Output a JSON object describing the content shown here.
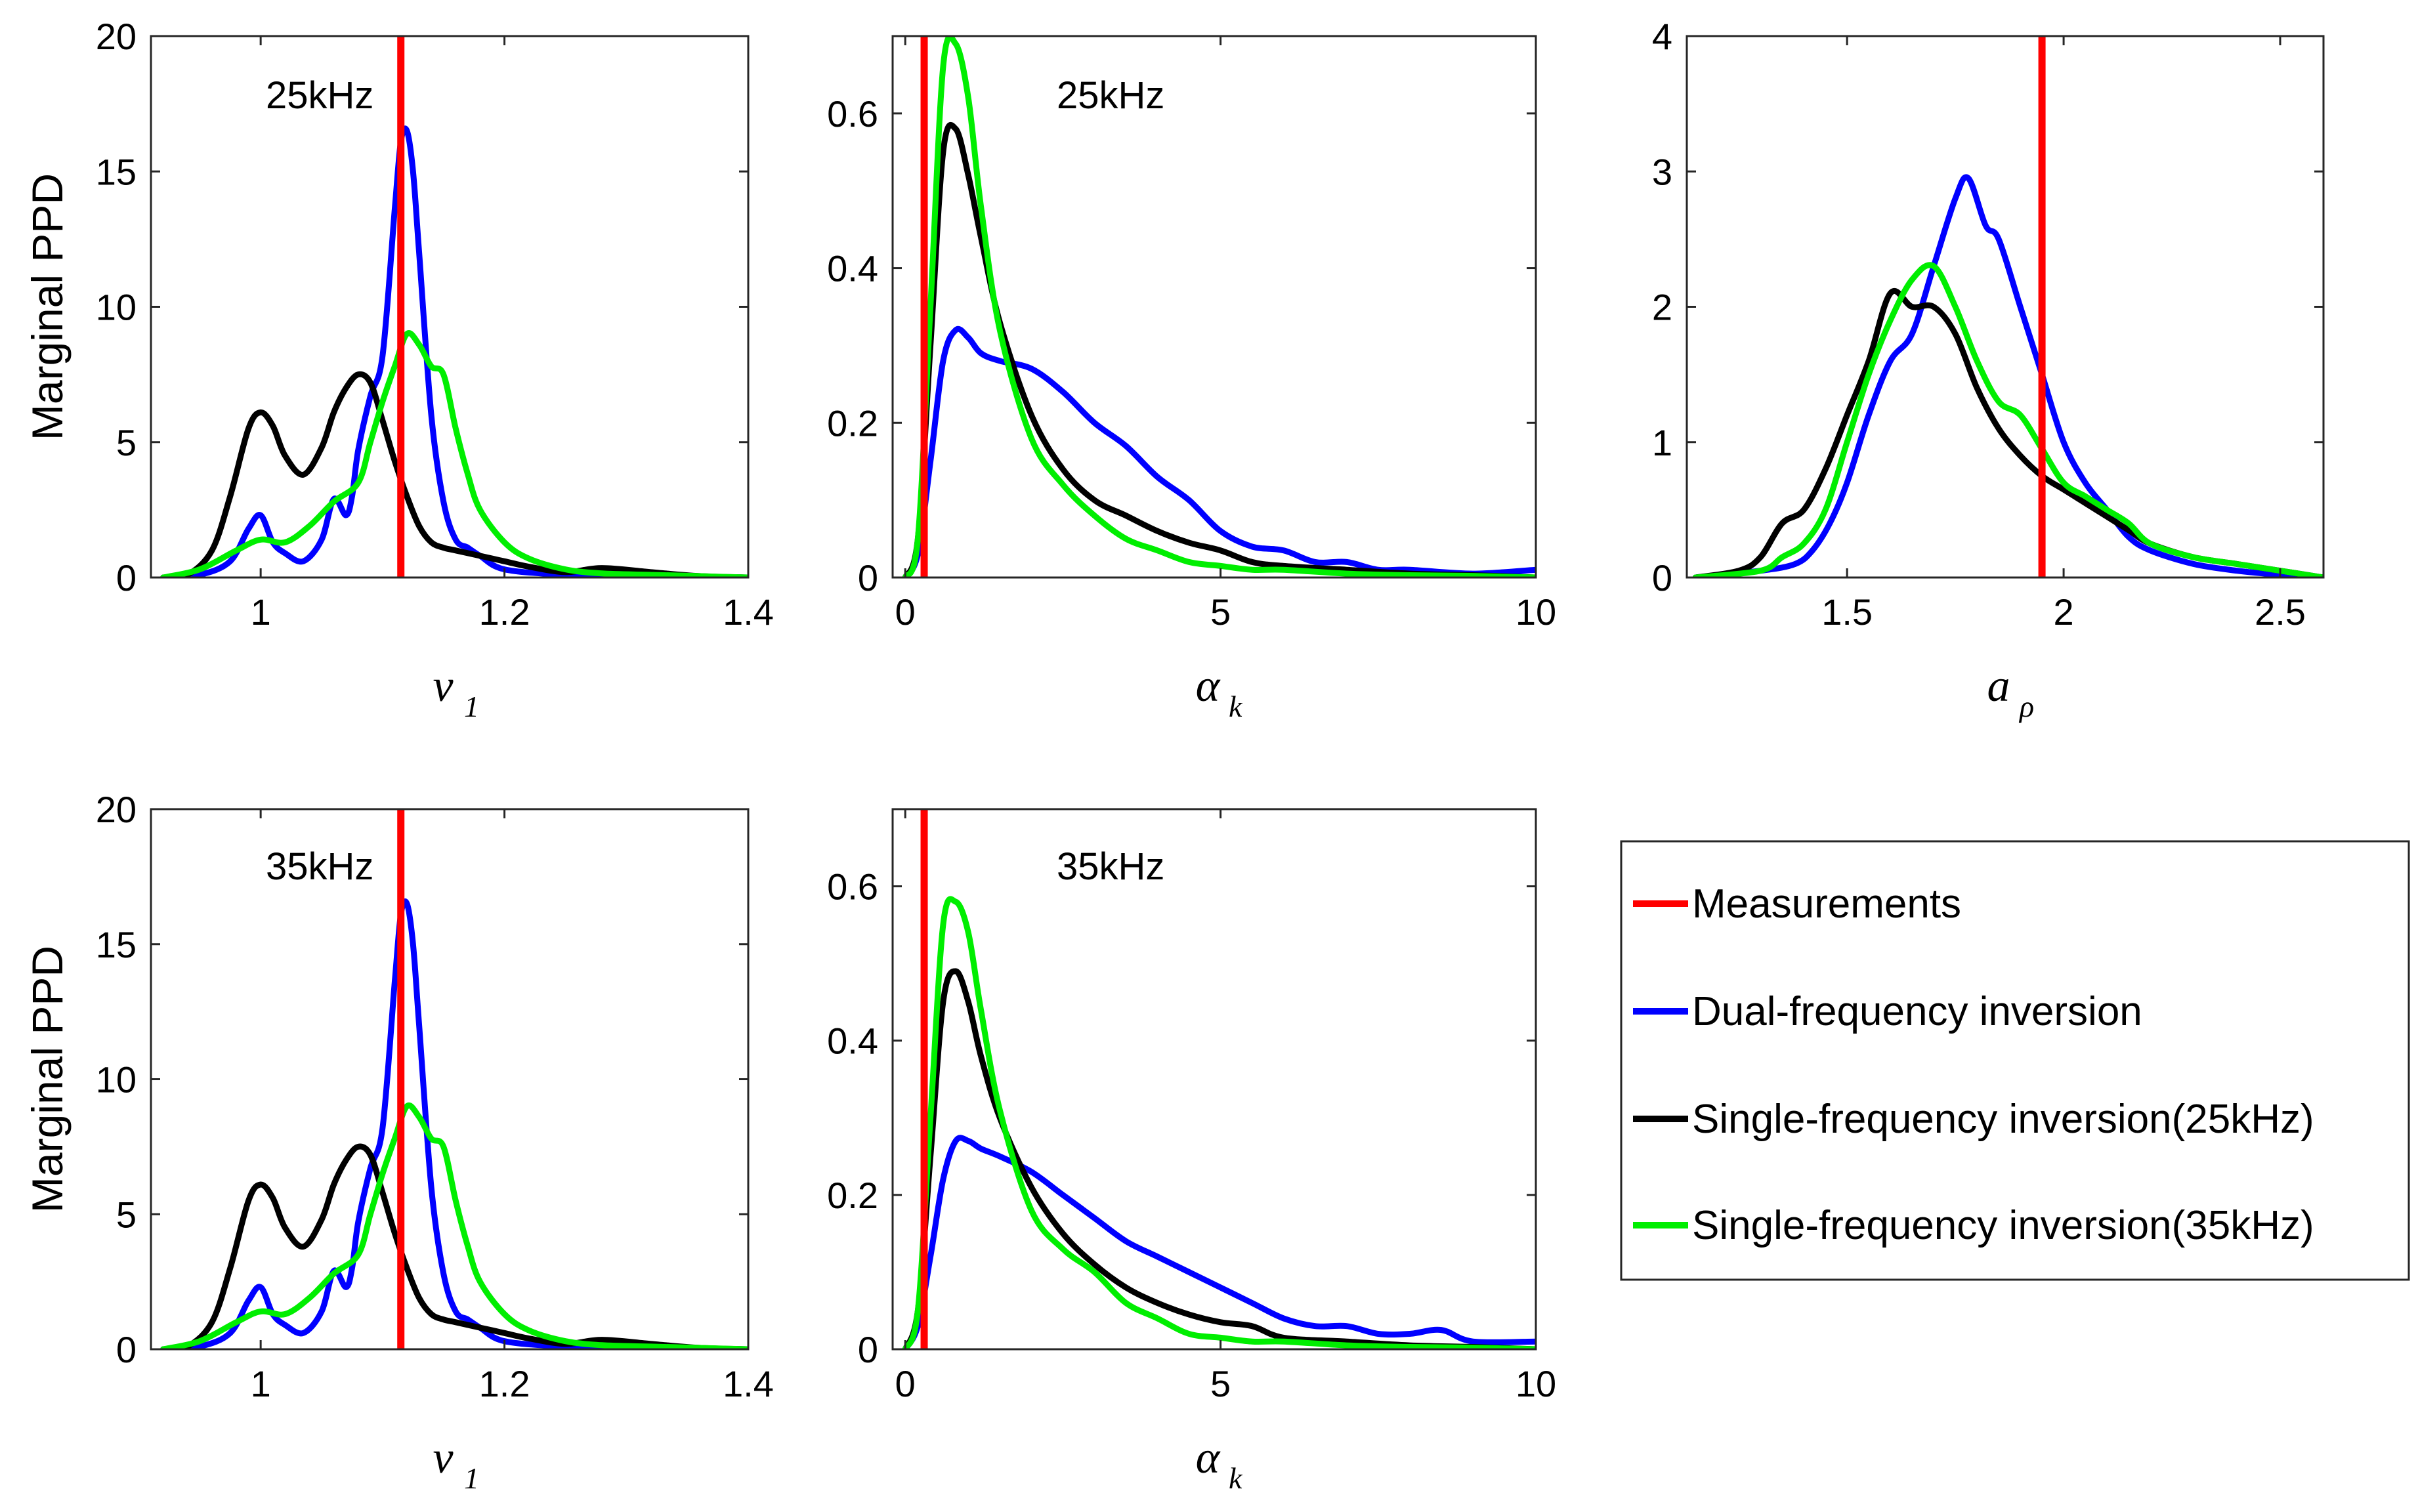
{
  "colors": {
    "measurement": "#ff0000",
    "dual": "#0000ff",
    "single25": "#000000",
    "single35": "#00ee00"
  },
  "legend": {
    "entries": [
      {
        "key": "measurement",
        "label": "Measurements"
      },
      {
        "key": "dual",
        "label": "Dual-frequency inversion"
      },
      {
        "key": "single25",
        "label": "Single-frequency inversion(25kHz)"
      },
      {
        "key": "single35",
        "label": "Single-frequency inversion(35kHz)"
      }
    ]
  },
  "chart_data": [
    {
      "id": "top-left",
      "type": "line",
      "annotation": "25kHz",
      "ylabel": "Marginal PPD",
      "xlabel_main": "v",
      "xlabel_sub": "1",
      "xlim": [
        0.91,
        1.4
      ],
      "ylim": [
        0,
        20
      ],
      "xticks": [
        1,
        1.2,
        1.4
      ],
      "xtick_labels": [
        "1",
        "1.2",
        "1.4"
      ],
      "yticks": [
        0,
        5,
        10,
        15,
        20
      ],
      "ytick_labels": [
        "0",
        "5",
        "10",
        "15",
        "20"
      ],
      "measurement_x": 1.115,
      "series": [
        {
          "name": "Dual-frequency inversion",
          "key": "dual",
          "x": [
            0.92,
            0.95,
            0.975,
            0.99,
            1.0,
            1.01,
            1.02,
            1.035,
            1.05,
            1.06,
            1.07,
            1.075,
            1.08,
            1.09,
            1.1,
            1.11,
            1.115,
            1.12,
            1.125,
            1.13,
            1.14,
            1.15,
            1.16,
            1.17,
            1.18,
            1.2,
            1.25,
            1.3,
            1.4
          ],
          "y": [
            0,
            0.1,
            0.6,
            1.8,
            2.3,
            1.3,
            0.9,
            0.6,
            1.4,
            2.9,
            2.3,
            3.0,
            4.7,
            6.7,
            8.2,
            13.6,
            16.1,
            16.5,
            15.0,
            12.0,
            6.0,
            2.8,
            1.4,
            1.1,
            0.8,
            0.3,
            0.1,
            0.05,
            0
          ]
        },
        {
          "name": "Single-frequency inversion(25kHz)",
          "key": "single25",
          "x": [
            0.92,
            0.94,
            0.96,
            0.975,
            0.99,
            1.0,
            1.01,
            1.02,
            1.035,
            1.05,
            1.06,
            1.07,
            1.08,
            1.09,
            1.1,
            1.11,
            1.12,
            1.13,
            1.14,
            1.15,
            1.16,
            1.18,
            1.2,
            1.22,
            1.25,
            1.28,
            1.32,
            1.36,
            1.4
          ],
          "y": [
            0,
            0.1,
            1.0,
            3.0,
            5.5,
            6.1,
            5.6,
            4.5,
            3.8,
            4.8,
            6.1,
            7.0,
            7.5,
            7.2,
            5.8,
            4.3,
            3.0,
            1.9,
            1.3,
            1.1,
            1.0,
            0.8,
            0.6,
            0.4,
            0.2,
            0.35,
            0.2,
            0.05,
            0
          ]
        },
        {
          "name": "Single-frequency inversion(35kHz)",
          "key": "single35",
          "x": [
            0.92,
            0.95,
            0.98,
            1.0,
            1.02,
            1.04,
            1.06,
            1.08,
            1.09,
            1.1,
            1.11,
            1.12,
            1.13,
            1.14,
            1.15,
            1.16,
            1.17,
            1.18,
            1.2,
            1.22,
            1.25,
            1.28,
            1.32,
            1.36,
            1.4
          ],
          "y": [
            0,
            0.3,
            1.0,
            1.4,
            1.3,
            1.9,
            2.8,
            3.5,
            5.0,
            6.5,
            7.8,
            9.0,
            8.6,
            7.8,
            7.5,
            5.5,
            3.8,
            2.5,
            1.3,
            0.7,
            0.3,
            0.15,
            0.1,
            0.05,
            0
          ]
        }
      ]
    },
    {
      "id": "top-middle",
      "type": "line",
      "annotation": "25kHz",
      "ylabel": "",
      "xlabel_main": "α",
      "xlabel_sub": "k",
      "xlim": [
        -0.2,
        10
      ],
      "ylim": [
        0,
        0.7
      ],
      "xticks": [
        0,
        5,
        10
      ],
      "xtick_labels": [
        "0",
        "5",
        "10"
      ],
      "yticks": [
        0,
        0.2,
        0.4,
        0.6
      ],
      "ytick_labels": [
        "0",
        "0.2",
        "0.4",
        "0.6"
      ],
      "measurement_x": 0.3,
      "series": [
        {
          "name": "Dual-frequency inversion",
          "key": "dual",
          "x": [
            0,
            0.2,
            0.4,
            0.6,
            0.8,
            1.0,
            1.2,
            1.5,
            2.0,
            2.5,
            3.0,
            3.5,
            4.0,
            4.5,
            5.0,
            5.5,
            6.0,
            6.5,
            7.0,
            7.5,
            8.0,
            9.0,
            10.0
          ],
          "y": [
            0,
            0.03,
            0.15,
            0.28,
            0.32,
            0.31,
            0.29,
            0.28,
            0.27,
            0.24,
            0.2,
            0.17,
            0.13,
            0.1,
            0.06,
            0.04,
            0.035,
            0.02,
            0.02,
            0.01,
            0.01,
            0.005,
            0.01
          ]
        },
        {
          "name": "Single-frequency inversion(25kHz)",
          "key": "single25",
          "x": [
            0,
            0.2,
            0.4,
            0.6,
            0.8,
            1.0,
            1.2,
            1.5,
            2.0,
            2.5,
            3.0,
            3.5,
            4.0,
            4.5,
            5.0,
            5.5,
            6.0,
            7.0,
            8.0,
            9.0,
            10.0
          ],
          "y": [
            0,
            0.05,
            0.3,
            0.55,
            0.58,
            0.52,
            0.44,
            0.33,
            0.21,
            0.14,
            0.1,
            0.08,
            0.06,
            0.045,
            0.035,
            0.02,
            0.015,
            0.01,
            0.005,
            0.003,
            0
          ]
        },
        {
          "name": "Single-frequency inversion(35kHz)",
          "key": "single35",
          "x": [
            0,
            0.2,
            0.4,
            0.6,
            0.8,
            1.0,
            1.2,
            1.5,
            2.0,
            2.5,
            3.0,
            3.5,
            4.0,
            4.5,
            5.0,
            5.5,
            6.0,
            7.0,
            8.0,
            9.0,
            10.0
          ],
          "y": [
            0,
            0.05,
            0.35,
            0.66,
            0.69,
            0.62,
            0.48,
            0.32,
            0.18,
            0.12,
            0.08,
            0.05,
            0.035,
            0.02,
            0.015,
            0.01,
            0.01,
            0.005,
            0.003,
            0.002,
            0
          ]
        }
      ]
    },
    {
      "id": "top-right",
      "type": "line",
      "annotation": "",
      "ylabel": "",
      "xlabel_main": "a",
      "xlabel_sub": "ρ",
      "xlim": [
        1.13,
        2.6
      ],
      "ylim": [
        0,
        4
      ],
      "xticks": [
        1.5,
        2,
        2.5
      ],
      "xtick_labels": [
        "1.5",
        "2",
        "2.5"
      ],
      "yticks": [
        0,
        1,
        2,
        3,
        4
      ],
      "ytick_labels": [
        "0",
        "1",
        "2",
        "3",
        "4"
      ],
      "measurement_x": 1.95,
      "series": [
        {
          "name": "Dual-frequency inversion",
          "key": "dual",
          "x": [
            1.15,
            1.3,
            1.38,
            1.42,
            1.46,
            1.5,
            1.55,
            1.6,
            1.65,
            1.7,
            1.75,
            1.78,
            1.82,
            1.85,
            1.9,
            1.95,
            2.0,
            2.05,
            2.1,
            2.15,
            2.2,
            2.3,
            2.4,
            2.5,
            2.6
          ],
          "y": [
            0,
            0.05,
            0.1,
            0.2,
            0.4,
            0.7,
            1.2,
            1.6,
            1.8,
            2.3,
            2.8,
            2.95,
            2.6,
            2.5,
            2.0,
            1.5,
            1.0,
            0.7,
            0.5,
            0.3,
            0.2,
            0.1,
            0.05,
            0.02,
            0
          ]
        },
        {
          "name": "Single-frequency inversion(25kHz)",
          "key": "single25",
          "x": [
            1.15,
            1.25,
            1.3,
            1.35,
            1.4,
            1.45,
            1.5,
            1.55,
            1.6,
            1.65,
            1.7,
            1.75,
            1.8,
            1.85,
            1.9,
            1.95,
            2.0,
            2.05,
            2.1,
            2.15,
            2.2,
            2.3,
            2.4,
            2.5,
            2.6
          ],
          "y": [
            0,
            0.05,
            0.15,
            0.4,
            0.5,
            0.8,
            1.2,
            1.6,
            2.1,
            2.0,
            2.0,
            1.8,
            1.4,
            1.1,
            0.9,
            0.75,
            0.65,
            0.55,
            0.45,
            0.35,
            0.25,
            0.15,
            0.1,
            0.05,
            0
          ]
        },
        {
          "name": "Single-frequency inversion(35kHz)",
          "key": "single35",
          "x": [
            1.15,
            1.3,
            1.35,
            1.4,
            1.45,
            1.5,
            1.55,
            1.6,
            1.65,
            1.7,
            1.75,
            1.8,
            1.85,
            1.9,
            1.95,
            2.0,
            2.05,
            2.1,
            2.15,
            2.2,
            2.3,
            2.4,
            2.5,
            2.6
          ],
          "y": [
            0,
            0.05,
            0.15,
            0.25,
            0.5,
            1.0,
            1.5,
            1.9,
            2.2,
            2.3,
            2.0,
            1.6,
            1.3,
            1.2,
            0.95,
            0.7,
            0.6,
            0.5,
            0.4,
            0.25,
            0.15,
            0.1,
            0.05,
            0
          ]
        }
      ]
    },
    {
      "id": "bottom-left",
      "type": "line",
      "annotation": "35kHz",
      "ylabel": "Marginal PPD",
      "xlabel_main": "v",
      "xlabel_sub": "1",
      "xlim": [
        0.91,
        1.4
      ],
      "ylim": [
        0,
        20
      ],
      "xticks": [
        1,
        1.2,
        1.4
      ],
      "xtick_labels": [
        "1",
        "1.2",
        "1.4"
      ],
      "yticks": [
        0,
        5,
        10,
        15,
        20
      ],
      "ytick_labels": [
        "0",
        "5",
        "10",
        "15",
        "20"
      ],
      "measurement_x": 1.115,
      "series": [
        {
          "name": "Dual-frequency inversion",
          "key": "dual",
          "x": [
            0.92,
            0.95,
            0.975,
            0.99,
            1.0,
            1.01,
            1.02,
            1.035,
            1.05,
            1.06,
            1.07,
            1.075,
            1.08,
            1.09,
            1.1,
            1.11,
            1.115,
            1.12,
            1.125,
            1.13,
            1.14,
            1.15,
            1.16,
            1.17,
            1.18,
            1.2,
            1.25,
            1.3,
            1.4
          ],
          "y": [
            0,
            0.1,
            0.6,
            1.8,
            2.3,
            1.3,
            0.9,
            0.6,
            1.4,
            2.9,
            2.3,
            3.0,
            4.7,
            6.7,
            8.2,
            13.6,
            16.1,
            16.5,
            15.0,
            12.0,
            6.0,
            2.8,
            1.4,
            1.1,
            0.8,
            0.3,
            0.1,
            0.05,
            0
          ]
        },
        {
          "name": "Single-frequency inversion(25kHz)",
          "key": "single25",
          "x": [
            0.92,
            0.94,
            0.96,
            0.975,
            0.99,
            1.0,
            1.01,
            1.02,
            1.035,
            1.05,
            1.06,
            1.07,
            1.08,
            1.09,
            1.1,
            1.11,
            1.12,
            1.13,
            1.14,
            1.15,
            1.16,
            1.18,
            1.2,
            1.22,
            1.25,
            1.28,
            1.32,
            1.36,
            1.4
          ],
          "y": [
            0,
            0.1,
            1.0,
            3.0,
            5.5,
            6.1,
            5.6,
            4.5,
            3.8,
            4.8,
            6.1,
            7.0,
            7.5,
            7.2,
            5.8,
            4.3,
            3.0,
            1.9,
            1.3,
            1.1,
            1.0,
            0.8,
            0.6,
            0.4,
            0.2,
            0.35,
            0.2,
            0.05,
            0
          ]
        },
        {
          "name": "Single-frequency inversion(35kHz)",
          "key": "single35",
          "x": [
            0.92,
            0.95,
            0.98,
            1.0,
            1.02,
            1.04,
            1.06,
            1.08,
            1.09,
            1.1,
            1.11,
            1.12,
            1.13,
            1.14,
            1.15,
            1.16,
            1.17,
            1.18,
            1.2,
            1.22,
            1.25,
            1.28,
            1.32,
            1.36,
            1.4
          ],
          "y": [
            0,
            0.3,
            1.0,
            1.4,
            1.3,
            1.9,
            2.8,
            3.5,
            5.0,
            6.5,
            7.8,
            9.0,
            8.6,
            7.8,
            7.5,
            5.5,
            3.8,
            2.5,
            1.3,
            0.7,
            0.3,
            0.15,
            0.1,
            0.05,
            0
          ]
        }
      ]
    },
    {
      "id": "bottom-middle",
      "type": "line",
      "annotation": "35kHz",
      "ylabel": "",
      "xlabel_main": "α",
      "xlabel_sub": "k",
      "xlim": [
        -0.2,
        10
      ],
      "ylim": [
        0,
        0.7
      ],
      "xticks": [
        0,
        5,
        10
      ],
      "xtick_labels": [
        "0",
        "5",
        "10"
      ],
      "yticks": [
        0,
        0.2,
        0.4,
        0.6
      ],
      "ytick_labels": [
        "0",
        "0.2",
        "0.4",
        "0.6"
      ],
      "measurement_x": 0.3,
      "series": [
        {
          "name": "Dual-frequency inversion",
          "key": "dual",
          "x": [
            0,
            0.2,
            0.4,
            0.6,
            0.8,
            1.0,
            1.2,
            1.5,
            2.0,
            2.5,
            3.0,
            3.5,
            4.0,
            4.5,
            5.0,
            5.5,
            6.0,
            6.5,
            7.0,
            7.5,
            8.0,
            8.5,
            9.0,
            10.0
          ],
          "y": [
            0,
            0.03,
            0.12,
            0.22,
            0.27,
            0.27,
            0.26,
            0.25,
            0.23,
            0.2,
            0.17,
            0.14,
            0.12,
            0.1,
            0.08,
            0.06,
            0.04,
            0.03,
            0.03,
            0.02,
            0.02,
            0.025,
            0.01,
            0.01
          ]
        },
        {
          "name": "Single-frequency inversion(25kHz)",
          "key": "single25",
          "x": [
            0,
            0.2,
            0.4,
            0.6,
            0.8,
            1.0,
            1.2,
            1.5,
            2.0,
            2.5,
            3.0,
            3.5,
            4.0,
            4.5,
            5.0,
            5.5,
            6.0,
            7.0,
            8.0,
            9.0,
            10.0
          ],
          "y": [
            0,
            0.05,
            0.25,
            0.45,
            0.49,
            0.45,
            0.38,
            0.3,
            0.21,
            0.15,
            0.11,
            0.08,
            0.06,
            0.045,
            0.035,
            0.03,
            0.015,
            0.01,
            0.005,
            0.003,
            0
          ]
        },
        {
          "name": "Single-frequency inversion(35kHz)",
          "key": "single35",
          "x": [
            0,
            0.2,
            0.4,
            0.6,
            0.8,
            1.0,
            1.2,
            1.5,
            2.0,
            2.5,
            3.0,
            3.5,
            4.0,
            4.5,
            5.0,
            5.5,
            6.0,
            7.0,
            8.0,
            9.0,
            10.0
          ],
          "y": [
            0,
            0.05,
            0.3,
            0.55,
            0.58,
            0.54,
            0.44,
            0.31,
            0.18,
            0.13,
            0.1,
            0.06,
            0.04,
            0.02,
            0.015,
            0.01,
            0.01,
            0.005,
            0.003,
            0.002,
            0
          ]
        }
      ]
    }
  ]
}
